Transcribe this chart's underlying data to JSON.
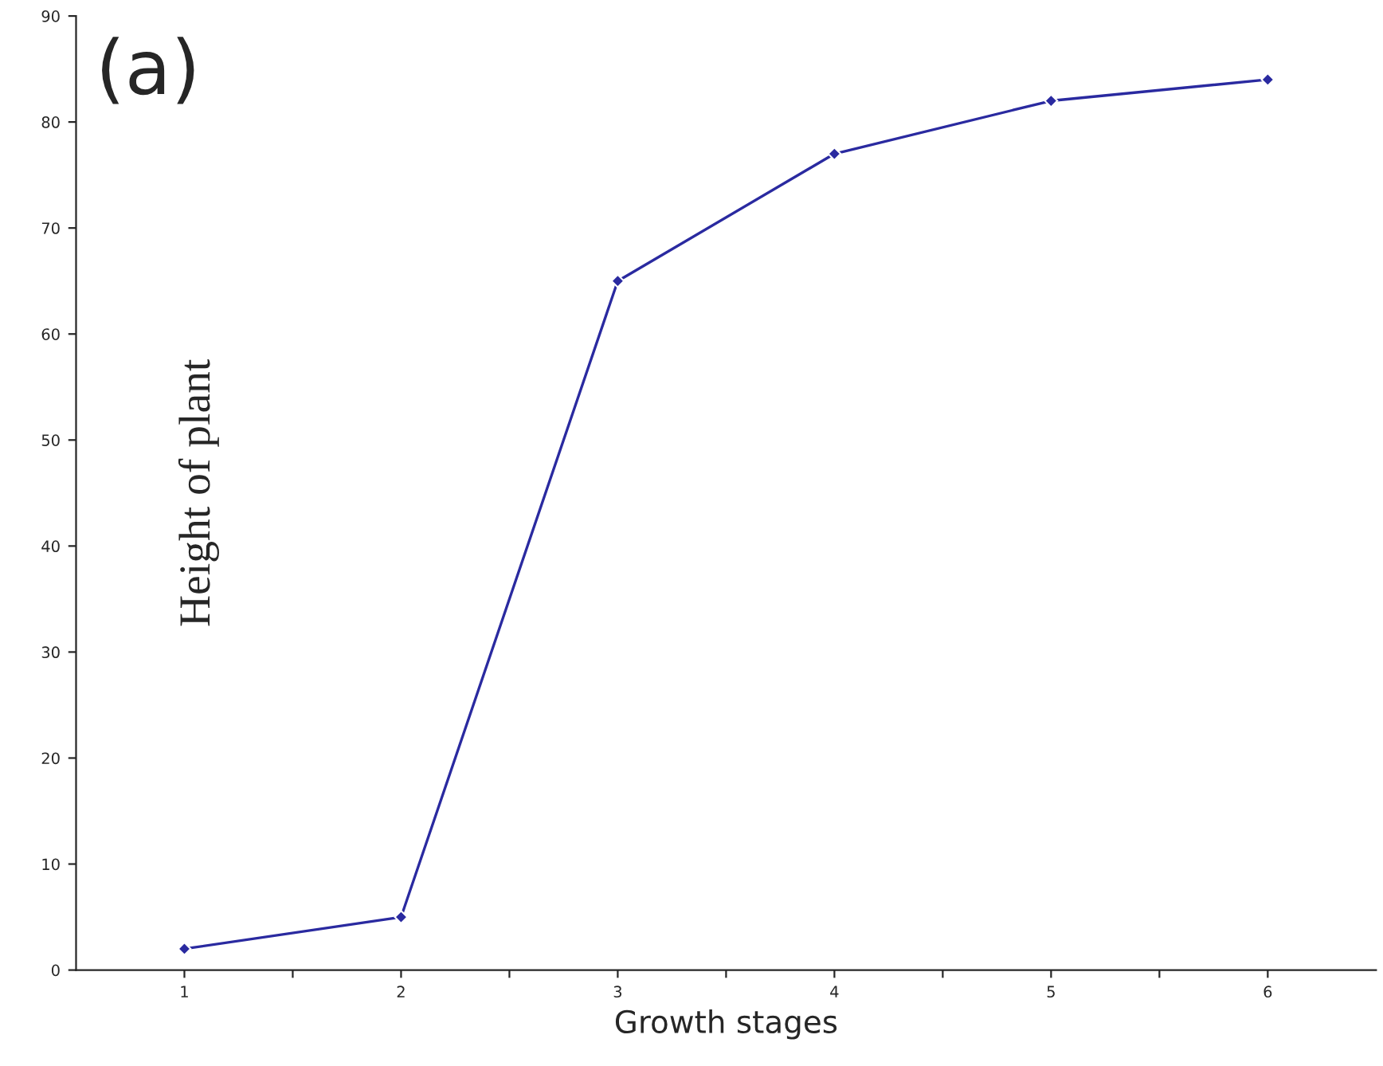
{
  "chart_data": {
    "type": "line",
    "x": [
      1,
      2,
      3,
      4,
      5,
      6
    ],
    "series": [
      {
        "color": "#2a2aa0",
        "values": [
          2,
          5,
          65,
          77,
          82,
          84
        ]
      }
    ],
    "xlabel": "Growth stages",
    "ylabel": "Height of plant",
    "annotations": [
      "(a)"
    ],
    "xlim": [
      0.5,
      6.5
    ],
    "xticks": [
      1,
      {
        "value": 1.5,
        "label": null
      },
      2,
      {
        "value": 2.5,
        "label": null
      },
      3,
      {
        "value": 3.5,
        "label": null
      },
      4,
      {
        "value": 4.5,
        "label": null
      },
      5,
      {
        "value": 5.5,
        "label": null
      },
      6
    ],
    "ylim": [
      0,
      90
    ],
    "yticks": [
      0,
      10,
      20,
      30,
      40,
      50,
      60,
      70,
      80,
      90
    ],
    "grid": false,
    "legend": false,
    "marker": "diamond",
    "line_style": "solid"
  }
}
